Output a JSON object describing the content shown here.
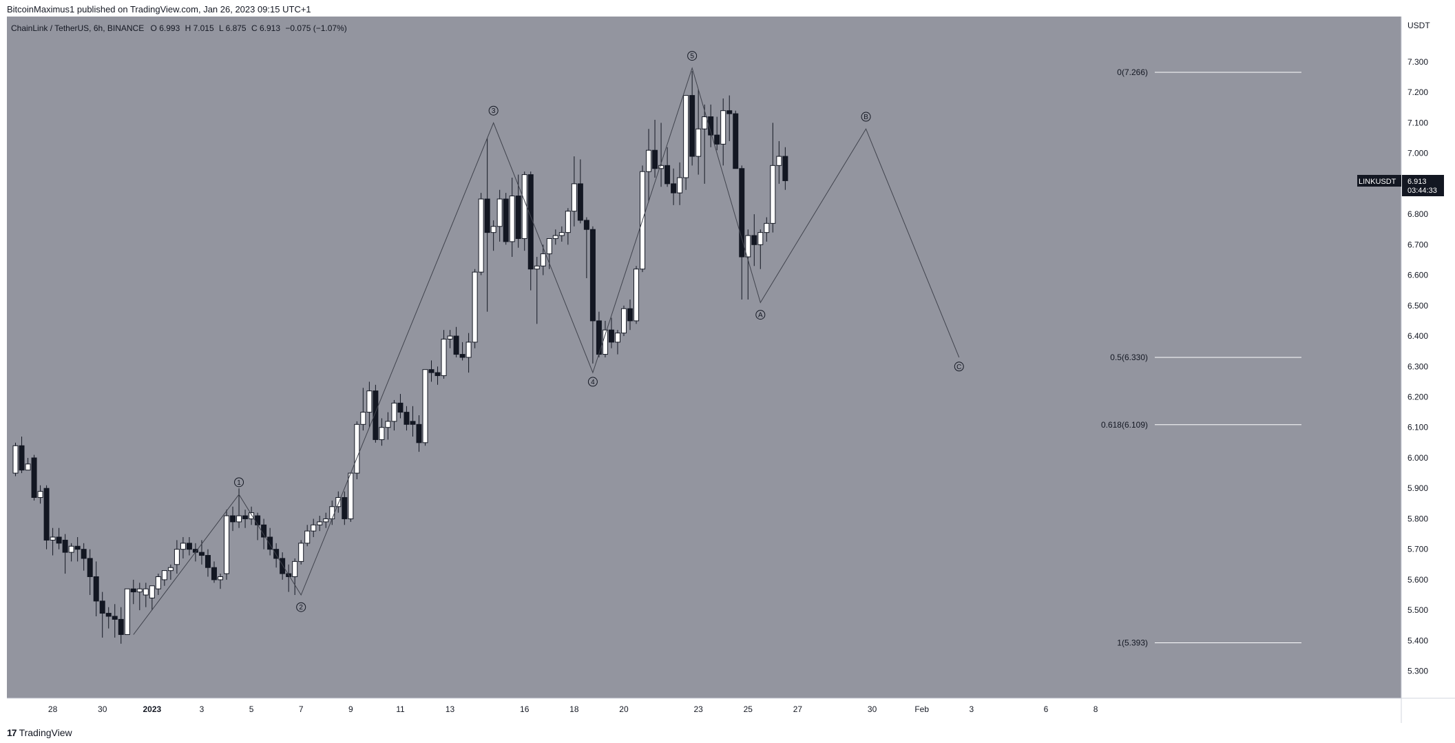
{
  "header": {
    "published": "BitcoinMaximus1 published on TradingView.com, Jan 26, 2023 09:15 UTC+1"
  },
  "footer": {
    "logo_mark": "17",
    "logo_text": "TradingView"
  },
  "legend": {
    "symbol": "ChainLink / TetherUS, 6h, BINANCE",
    "o_label": "O",
    "o": "6.993",
    "h_label": "H",
    "h": "7.015",
    "l_label": "L",
    "l": "6.875",
    "c_label": "C",
    "c": "6.913",
    "change": "−0.075 (−1.07%)"
  },
  "colors": {
    "background": "#93959f",
    "axis_bg": "#ffffff",
    "candle_up": "#ffffff",
    "candle_down": "#131722",
    "wick": "#131722",
    "line": "#40434d",
    "fib_line": "#ffffff",
    "badge_bg": "#131722",
    "badge_text": "#ffffff"
  },
  "price_badge": {
    "symbol": "LINKUSDT",
    "price": "6.913",
    "countdown": "03:44:33"
  },
  "chart_data": {
    "type": "candlestick",
    "currency": "USDT",
    "ylim": [
      5.22,
      7.44
    ],
    "y_ticks": [
      "7.300",
      "7.200",
      "7.100",
      "7.000",
      "6.900",
      "6.800",
      "6.700",
      "6.600",
      "6.500",
      "6.400",
      "6.300",
      "6.200",
      "6.100",
      "6.000",
      "5.900",
      "5.800",
      "5.700",
      "5.600",
      "5.500",
      "5.400",
      "5.300"
    ],
    "x_ticks": [
      {
        "label": "28",
        "bar": 6.5
      },
      {
        "label": "30",
        "bar": 14.5
      },
      {
        "label": "2023",
        "bar": 22.5
      },
      {
        "label": "3",
        "bar": 30.5
      },
      {
        "label": "5",
        "bar": 38.5
      },
      {
        "label": "7",
        "bar": 46.5
      },
      {
        "label": "9",
        "bar": 54.5
      },
      {
        "label": "11",
        "bar": 62.5
      },
      {
        "label": "13",
        "bar": 70.5
      },
      {
        "label": "16",
        "bar": 82.5
      },
      {
        "label": "18",
        "bar": 90.5
      },
      {
        "label": "20",
        "bar": 98.5
      },
      {
        "label": "23",
        "bar": 110.5
      },
      {
        "label": "25",
        "bar": 118.5
      },
      {
        "label": "27",
        "bar": 126.5
      },
      {
        "label": "30",
        "bar": 138.5
      },
      {
        "label": "Feb",
        "bar": 146.5
      },
      {
        "label": "3",
        "bar": 154.5
      },
      {
        "label": "6",
        "bar": 166.5
      },
      {
        "label": "8",
        "bar": 174.5
      }
    ],
    "candles": [
      [
        5.95,
        6.05,
        5.94,
        6.04
      ],
      [
        6.04,
        6.07,
        5.95,
        5.96
      ],
      [
        5.96,
        6.0,
        5.97,
        5.98
      ],
      [
        6.0,
        6.01,
        5.86,
        5.87
      ],
      [
        5.87,
        5.91,
        5.85,
        5.89
      ],
      [
        5.9,
        5.91,
        5.7,
        5.73
      ],
      [
        5.73,
        5.77,
        5.68,
        5.74
      ],
      [
        5.74,
        5.77,
        5.7,
        5.72
      ],
      [
        5.73,
        5.75,
        5.62,
        5.69
      ],
      [
        5.69,
        5.72,
        5.66,
        5.71
      ],
      [
        5.71,
        5.74,
        5.66,
        5.7
      ],
      [
        5.7,
        5.72,
        5.63,
        5.67
      ],
      [
        5.67,
        5.7,
        5.55,
        5.61
      ],
      [
        5.61,
        5.66,
        5.48,
        5.53
      ],
      [
        5.53,
        5.56,
        5.41,
        5.49
      ],
      [
        5.49,
        5.51,
        5.44,
        5.48
      ],
      [
        5.48,
        5.52,
        5.41,
        5.47
      ],
      [
        5.47,
        5.51,
        5.39,
        5.42
      ],
      [
        5.42,
        5.57,
        5.42,
        5.57
      ],
      [
        5.57,
        5.6,
        5.52,
        5.56
      ],
      [
        5.56,
        5.59,
        5.5,
        5.57
      ],
      [
        5.55,
        5.59,
        5.51,
        5.57
      ],
      [
        5.54,
        5.58,
        5.5,
        5.58
      ],
      [
        5.57,
        5.62,
        5.55,
        5.61
      ],
      [
        5.6,
        5.63,
        5.58,
        5.63
      ],
      [
        5.63,
        5.65,
        5.6,
        5.64
      ],
      [
        5.65,
        5.73,
        5.62,
        5.7
      ],
      [
        5.7,
        5.74,
        5.67,
        5.72
      ],
      [
        5.72,
        5.74,
        5.68,
        5.7
      ],
      [
        5.7,
        5.72,
        5.66,
        5.69
      ],
      [
        5.69,
        5.73,
        5.65,
        5.68
      ],
      [
        5.68,
        5.7,
        5.61,
        5.64
      ],
      [
        5.64,
        5.66,
        5.59,
        5.6
      ],
      [
        5.6,
        5.62,
        5.57,
        5.61
      ],
      [
        5.62,
        5.83,
        5.6,
        5.81
      ],
      [
        5.81,
        5.84,
        5.76,
        5.79
      ],
      [
        5.79,
        5.9,
        5.77,
        5.81
      ],
      [
        5.81,
        5.83,
        5.77,
        5.8
      ],
      [
        5.8,
        5.84,
        5.78,
        5.82
      ],
      [
        5.81,
        5.82,
        5.73,
        5.78
      ],
      [
        5.78,
        5.8,
        5.7,
        5.74
      ],
      [
        5.74,
        5.77,
        5.68,
        5.7
      ],
      [
        5.7,
        5.72,
        5.64,
        5.67
      ],
      [
        5.67,
        5.69,
        5.6,
        5.62
      ],
      [
        5.62,
        5.65,
        5.56,
        5.61
      ],
      [
        5.61,
        5.67,
        5.55,
        5.66
      ],
      [
        5.66,
        5.73,
        5.65,
        5.72
      ],
      [
        5.72,
        5.78,
        5.71,
        5.76
      ],
      [
        5.76,
        5.8,
        5.74,
        5.78
      ],
      [
        5.78,
        5.81,
        5.76,
        5.79
      ],
      [
        5.79,
        5.82,
        5.77,
        5.8
      ],
      [
        5.8,
        5.86,
        5.78,
        5.84
      ],
      [
        5.84,
        5.89,
        5.82,
        5.87
      ],
      [
        5.87,
        5.89,
        5.78,
        5.8
      ],
      [
        5.8,
        5.95,
        5.79,
        5.95
      ],
      [
        5.95,
        6.12,
        5.93,
        6.11
      ],
      [
        6.11,
        6.23,
        6.09,
        6.15
      ],
      [
        6.15,
        6.25,
        6.1,
        6.22
      ],
      [
        6.22,
        6.24,
        6.05,
        6.06
      ],
      [
        6.06,
        6.13,
        6.04,
        6.1
      ],
      [
        6.1,
        6.15,
        6.06,
        6.12
      ],
      [
        6.12,
        6.19,
        6.09,
        6.18
      ],
      [
        6.18,
        6.21,
        6.13,
        6.15
      ],
      [
        6.15,
        6.17,
        6.09,
        6.11
      ],
      [
        6.12,
        6.17,
        6.07,
        6.11
      ],
      [
        6.11,
        6.14,
        6.02,
        6.05
      ],
      [
        6.05,
        6.29,
        6.04,
        6.29
      ],
      [
        6.29,
        6.32,
        6.25,
        6.28
      ],
      [
        6.28,
        6.3,
        6.24,
        6.27
      ],
      [
        6.27,
        6.42,
        6.26,
        6.39
      ],
      [
        6.39,
        6.42,
        6.36,
        6.4
      ],
      [
        6.4,
        6.43,
        6.33,
        6.34
      ],
      [
        6.34,
        6.38,
        6.32,
        6.33
      ],
      [
        6.33,
        6.41,
        6.28,
        6.38
      ],
      [
        6.38,
        6.62,
        6.36,
        6.61
      ],
      [
        6.61,
        6.87,
        6.6,
        6.85
      ],
      [
        6.85,
        7.05,
        6.48,
        6.74
      ],
      [
        6.74,
        6.78,
        6.68,
        6.76
      ],
      [
        6.76,
        6.88,
        6.71,
        6.85
      ],
      [
        6.85,
        6.87,
        6.7,
        6.71
      ],
      [
        6.71,
        6.92,
        6.66,
        6.86
      ],
      [
        6.86,
        6.93,
        6.69,
        6.72
      ],
      [
        6.72,
        6.94,
        6.68,
        6.93
      ],
      [
        6.93,
        6.94,
        6.55,
        6.62
      ],
      [
        6.62,
        6.66,
        6.44,
        6.63
      ],
      [
        6.63,
        6.7,
        6.6,
        6.67
      ],
      [
        6.67,
        6.72,
        6.62,
        6.72
      ],
      [
        6.72,
        6.75,
        6.7,
        6.73
      ],
      [
        6.73,
        6.76,
        6.71,
        6.74
      ],
      [
        6.74,
        6.82,
        6.7,
        6.81
      ],
      [
        6.81,
        6.99,
        6.76,
        6.9
      ],
      [
        6.9,
        6.98,
        6.77,
        6.78
      ],
      [
        6.78,
        6.79,
        6.59,
        6.75
      ],
      [
        6.75,
        6.76,
        6.31,
        6.45
      ],
      [
        6.45,
        6.48,
        6.33,
        6.34
      ],
      [
        6.34,
        6.45,
        6.33,
        6.42
      ],
      [
        6.42,
        6.46,
        6.36,
        6.38
      ],
      [
        6.38,
        6.42,
        6.34,
        6.41
      ],
      [
        6.41,
        6.5,
        6.4,
        6.49
      ],
      [
        6.49,
        6.52,
        6.42,
        6.45
      ],
      [
        6.45,
        6.63,
        6.44,
        6.62
      ],
      [
        6.62,
        6.96,
        6.61,
        6.94
      ],
      [
        6.94,
        7.08,
        6.84,
        7.01
      ],
      [
        7.01,
        7.11,
        6.92,
        6.95
      ],
      [
        6.95,
        7.1,
        6.89,
        6.96
      ],
      [
        6.96,
        7.02,
        6.89,
        6.9
      ],
      [
        6.9,
        6.95,
        6.83,
        6.87
      ],
      [
        6.87,
        6.97,
        6.83,
        6.92
      ],
      [
        6.92,
        7.19,
        6.88,
        7.19
      ],
      [
        7.19,
        7.27,
        6.96,
        6.99
      ],
      [
        6.99,
        7.21,
        6.93,
        7.08
      ],
      [
        7.08,
        7.16,
        6.9,
        7.12
      ],
      [
        7.12,
        7.16,
        7.02,
        7.06
      ],
      [
        7.06,
        7.12,
        7.01,
        7.03
      ],
      [
        7.03,
        7.18,
        6.96,
        7.14
      ],
      [
        7.14,
        7.19,
        7.04,
        7.13
      ],
      [
        7.13,
        7.14,
        6.95,
        6.95
      ],
      [
        6.95,
        6.96,
        6.52,
        6.66
      ],
      [
        6.66,
        6.75,
        6.52,
        6.73
      ],
      [
        6.73,
        6.8,
        6.63,
        6.7
      ],
      [
        6.7,
        6.75,
        6.62,
        6.74
      ],
      [
        6.74,
        6.79,
        6.71,
        6.77
      ],
      [
        6.77,
        7.1,
        6.74,
        6.96
      ],
      [
        6.96,
        7.04,
        6.9,
        6.99
      ],
      [
        6.99,
        7.02,
        6.88,
        6.91
      ]
    ],
    "wave_path": [
      [
        19.5,
        5.42
      ],
      [
        36.5,
        5.88
      ],
      [
        46.5,
        5.55
      ],
      [
        77.5,
        7.1
      ],
      [
        93.5,
        6.28
      ],
      [
        109.5,
        7.28
      ],
      [
        120.5,
        6.51
      ],
      [
        137.5,
        7.08
      ],
      [
        152.5,
        6.33
      ]
    ],
    "wave_labels": [
      {
        "text": "1",
        "bar": 36.5,
        "price": 5.92
      },
      {
        "text": "2",
        "bar": 46.5,
        "price": 5.51
      },
      {
        "text": "3",
        "bar": 77.5,
        "price": 7.14
      },
      {
        "text": "4",
        "bar": 93.5,
        "price": 6.25
      },
      {
        "text": "5",
        "bar": 109.5,
        "price": 7.32
      },
      {
        "text": "A",
        "bar": 120.5,
        "price": 6.47
      },
      {
        "text": "B",
        "bar": 137.5,
        "price": 7.12
      },
      {
        "text": "C",
        "bar": 152.5,
        "price": 6.3
      }
    ],
    "fib_levels": [
      {
        "label": "0(7.266)",
        "price": 7.266
      },
      {
        "label": "0.5(6.330)",
        "price": 6.33
      },
      {
        "label": "0.618(6.109)",
        "price": 6.109
      },
      {
        "label": "1(5.393)",
        "price": 5.393
      }
    ]
  }
}
